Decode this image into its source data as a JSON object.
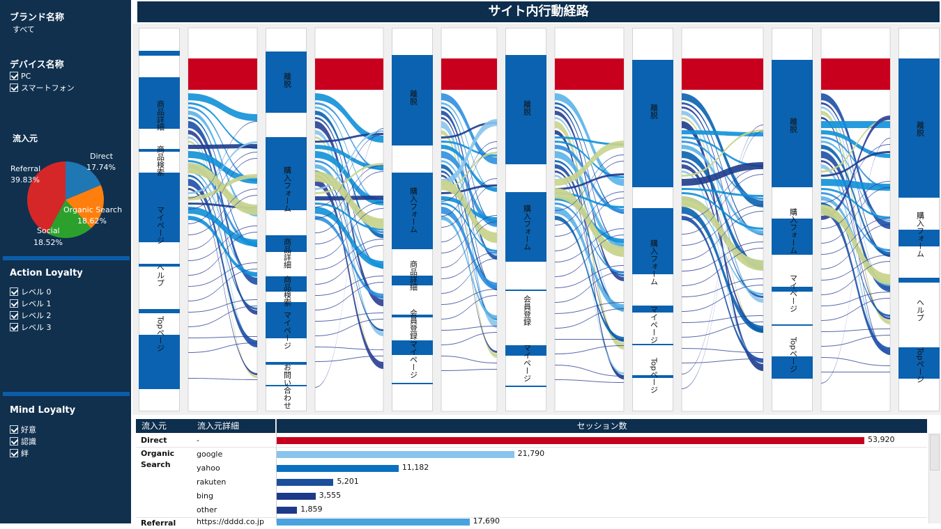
{
  "sidebar": {
    "brand_heading": "ブランド名称",
    "brand_value": "すべて",
    "device_heading": "デバイス名称",
    "devices": [
      "PC",
      "スマートフォン"
    ],
    "source_heading": "流入元",
    "pie": [
      {
        "label": "Direct",
        "pct": "17.74%",
        "value": 17.74,
        "color": "#1f77b4"
      },
      {
        "label": "Organic Search",
        "pct": "18.62%",
        "value": 18.62,
        "color": "#ff7f0e"
      },
      {
        "label": "Social",
        "pct": "18.52%",
        "value": 18.52,
        "color": "#2ca02c"
      },
      {
        "label": "Referral",
        "pct": "39.83%",
        "value": 39.83,
        "color": "#d62728"
      }
    ],
    "action_heading": "Action Loyalty",
    "action_levels": [
      "レベル 0",
      "レベル 1",
      "レベル 2",
      "レベル 3"
    ],
    "mind_heading": "Mind Loyalty",
    "mind_levels": [
      "好意",
      "認識",
      "絆"
    ]
  },
  "title": "サイト内行動経路",
  "flow_columns": [
    {
      "nodes": [
        "商品詳細",
        "商品検索",
        "マイページ",
        "ヘルプ",
        "Topページ"
      ]
    },
    {
      "nodes": [
        "離脱",
        "購入フォーム",
        "商品詳細",
        "商品検索",
        "マイページ",
        "お問い合わせ"
      ]
    },
    {
      "nodes": [
        "離脱",
        "購入フォーム",
        "商品詳細",
        "会員登録",
        "マイページ"
      ]
    },
    {
      "nodes": [
        "離脱",
        "購入フォーム",
        "会員登録",
        "マイページ"
      ]
    },
    {
      "nodes": [
        "離脱",
        "購入フォーム",
        "マイページ",
        "Topページ"
      ]
    },
    {
      "nodes": [
        "離脱",
        "購入フォーム",
        "マイページ",
        "Topページ"
      ]
    },
    {
      "nodes": [
        "離脱",
        "購入フォーム",
        "ヘルプ",
        "Topページ"
      ]
    }
  ],
  "table": {
    "headers": {
      "source": "流入元",
      "detail": "流入元詳細",
      "sessions": "セッション数"
    },
    "max": 53920,
    "rows": [
      {
        "source": "Direct",
        "detail": "-",
        "value": 53920,
        "label": "53,920",
        "color": "#c8001e"
      },
      {
        "source": "Organic Search",
        "detail": "google",
        "value": 21790,
        "label": "21,790",
        "color": "#88c4ec"
      },
      {
        "source": "",
        "detail": "yahoo",
        "value": 11182,
        "label": "11,182",
        "color": "#0a70c0"
      },
      {
        "source": "",
        "detail": "rakuten",
        "value": 5201,
        "label": "5,201",
        "color": "#1b4f9c"
      },
      {
        "source": "",
        "detail": "bing",
        "value": 3555,
        "label": "3,555",
        "color": "#1d3a8a"
      },
      {
        "source": "",
        "detail": "other",
        "value": 1859,
        "label": "1,859",
        "color": "#1d3a8a"
      },
      {
        "source": "Referral",
        "detail": "https://dddd.co.jp",
        "value": 17690,
        "label": "17,690",
        "color": "#4aa3df"
      }
    ]
  }
}
